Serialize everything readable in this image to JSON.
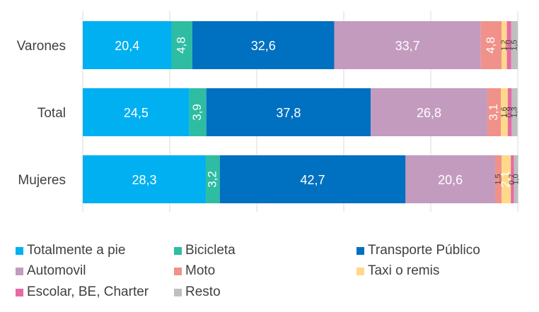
{
  "chart_data": {
    "type": "bar",
    "orientation": "horizontal",
    "stacked": true,
    "categories": [
      "Varones",
      "Total",
      "Mujeres"
    ],
    "xlim": [
      0,
      100
    ],
    "grid": true,
    "legend_position": "bottom",
    "series": [
      {
        "name": "Totalmente a pie",
        "color": "#00B0F0",
        "values": [
          20.4,
          24.5,
          28.3
        ],
        "labels": [
          "20,4",
          "24,5",
          "28,3"
        ]
      },
      {
        "name": "Bicicleta",
        "color": "#2EBDA2",
        "values": [
          4.8,
          3.9,
          3.2
        ],
        "labels": [
          "4,8",
          "3,9",
          "3,2"
        ]
      },
      {
        "name": "Transporte Público",
        "color": "#0070C0",
        "values": [
          32.6,
          37.8,
          42.7
        ],
        "labels": [
          "32,6",
          "37,8",
          "42,7"
        ]
      },
      {
        "name": "Automovil",
        "color": "#C39BBF",
        "values": [
          33.7,
          26.8,
          20.6
        ],
        "labels": [
          "33,7",
          "26,8",
          "20,6"
        ]
      },
      {
        "name": "Moto",
        "color": "#F0928A",
        "values": [
          4.8,
          3.1,
          1.5
        ],
        "labels": [
          "4,8",
          "3,1",
          "1,5"
        ]
      },
      {
        "name": "Taxi o remis",
        "color": "#FFD98A",
        "values": [
          1.2,
          1.6,
          2.1
        ],
        "labels": [
          "1,2",
          "1,6",
          "2,1"
        ]
      },
      {
        "name": "Escolar, BE, Charter",
        "color": "#E86AA4",
        "values": [
          1.0,
          0.9,
          0.7
        ],
        "labels": [
          "1,0",
          "0,9",
          "0,7"
        ]
      },
      {
        "name": "Resto",
        "color": "#BFBFBF",
        "values": [
          1.5,
          1.3,
          1.0
        ],
        "labels": [
          "1,5",
          "1,3",
          "1,0"
        ]
      }
    ]
  }
}
